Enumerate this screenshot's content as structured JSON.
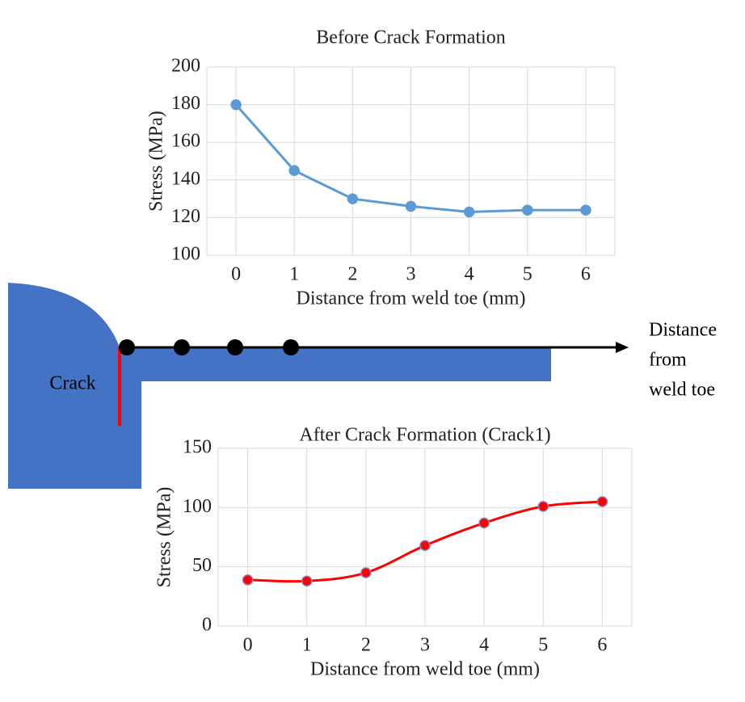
{
  "diagram": {
    "crack_label": "Crack",
    "axis_label": [
      "Distance",
      "from",
      "weld toe"
    ]
  },
  "chart_data": [
    {
      "type": "line",
      "title": "Before Crack Formation",
      "x_label": "Distance from weld toe (mm)",
      "y_label": "Stress (MPa)",
      "categories": [
        "0",
        "1",
        "2",
        "3",
        "4",
        "5",
        "6"
      ],
      "series": [
        {
          "name": "Before Crack Formation",
          "color": "#5b9bd5",
          "values": [
            180,
            145,
            130,
            126,
            123,
            124,
            124
          ]
        }
      ],
      "ylim": [
        100,
        200
      ],
      "yticks": [
        100,
        120,
        140,
        160,
        180,
        200
      ],
      "grid": true,
      "smooth": false
    },
    {
      "type": "line",
      "title": "After Crack Formation (Crack1)",
      "x_label": "Distance from weld toe (mm)",
      "y_label": "Stress (MPa)",
      "categories": [
        "0",
        "1",
        "2",
        "3",
        "4",
        "5",
        "6"
      ],
      "series": [
        {
          "name": "After Crack Formation (Crack1)",
          "color": "#ff0000",
          "values": [
            39,
            38,
            45,
            68,
            87,
            101,
            105
          ]
        }
      ],
      "ylim": [
        0,
        150
      ],
      "yticks": [
        0,
        50,
        100,
        150
      ],
      "grid": true,
      "smooth": true
    }
  ]
}
